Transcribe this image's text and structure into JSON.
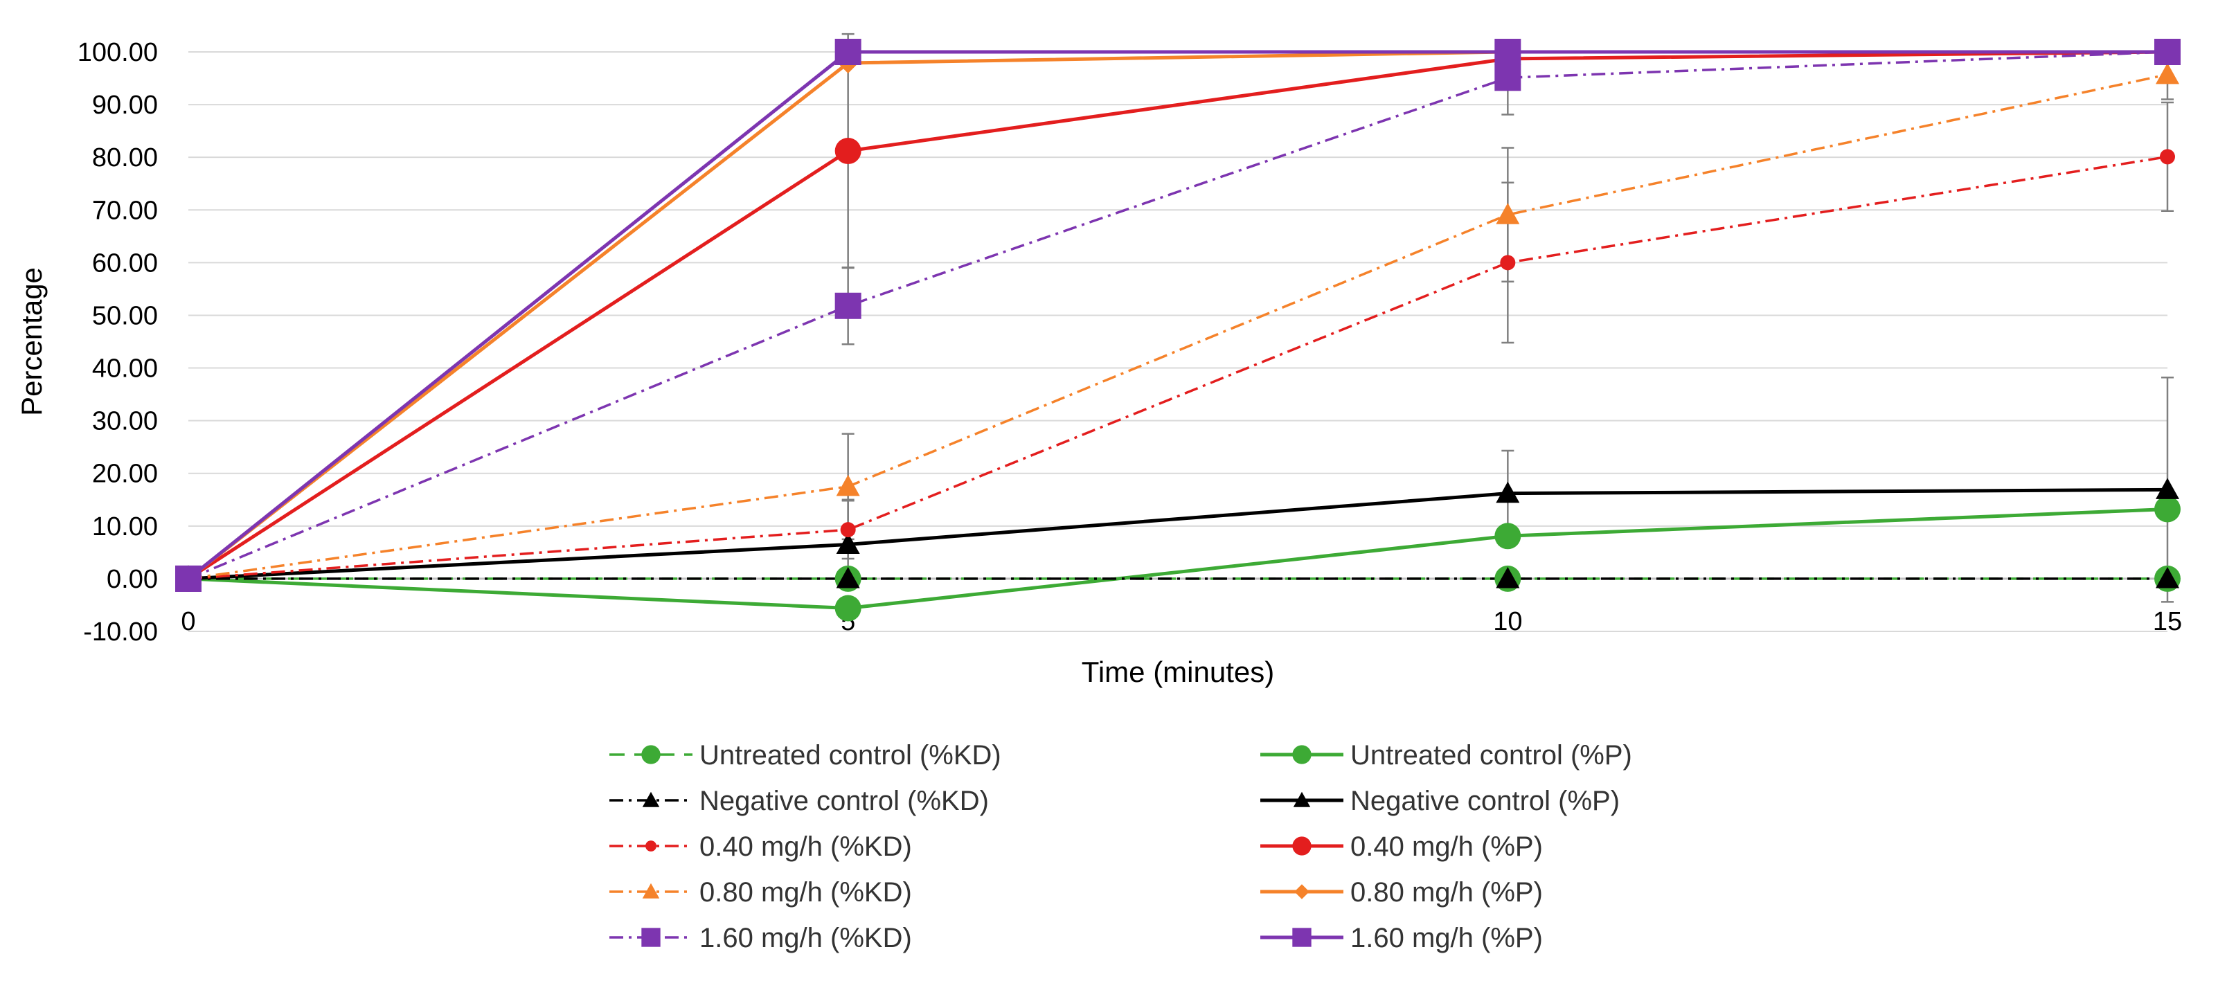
{
  "chart_data": {
    "type": "line",
    "title": "",
    "xlabel": "Time (minutes)",
    "ylabel": "Percentage",
    "x": [
      0,
      5,
      10,
      15
    ],
    "xlim": [
      0,
      15
    ],
    "ylim": [
      -10,
      100
    ],
    "y_ticks": [
      -10,
      0,
      10,
      20,
      30,
      40,
      50,
      60,
      70,
      80,
      90,
      100
    ],
    "y_tick_labels": [
      "-10.00",
      "0.00",
      "10.00",
      "20.00",
      "30.00",
      "40.00",
      "50.00",
      "60.00",
      "70.00",
      "80.00",
      "90.00",
      "100.00"
    ],
    "x_tick_labels": [
      "0",
      "5",
      "10",
      "15"
    ],
    "grid": "horizontal",
    "legend_position": "bottom",
    "series": [
      {
        "name": "Untreated control (%KD)",
        "color": "#3daa35",
        "dash": "dash",
        "marker": "circle",
        "values": [
          0,
          0,
          0,
          0
        ],
        "errors": [
          0,
          0,
          0,
          0
        ]
      },
      {
        "name": "Untreated control (%P)",
        "color": "#3daa35",
        "dash": "solid",
        "marker": "circle",
        "values": [
          0,
          -5.6,
          8.1,
          13.2
        ],
        "errors": [
          0,
          0,
          0,
          0
        ]
      },
      {
        "name": "Negative control (%KD)",
        "color": "#000000",
        "dash": "dashdot",
        "marker": "triangle",
        "values": [
          0,
          0,
          0,
          0
        ],
        "errors": [
          0,
          0,
          0,
          0
        ]
      },
      {
        "name": "Negative control (%P)",
        "color": "#000000",
        "dash": "solid",
        "marker": "triangle",
        "values": [
          0,
          6.5,
          16.2,
          16.9
        ],
        "errors": [
          0,
          8.5,
          8.1,
          21.3
        ]
      },
      {
        "name": "0.40 mg/h (%KD)",
        "color": "#e31e1e",
        "dash": "dashdot",
        "marker": "circle-small",
        "values": [
          0,
          9.3,
          60.0,
          80.1
        ],
        "errors": [
          0,
          5.5,
          15.2,
          10.3
        ]
      },
      {
        "name": "0.40 mg/h (%P)",
        "color": "#e31e1e",
        "dash": "solid",
        "marker": "circle",
        "values": [
          0,
          81.2,
          98.7,
          100
        ],
        "errors": [
          0,
          22.2,
          0,
          0
        ]
      },
      {
        "name": "0.80 mg/h (%KD)",
        "color": "#f5822a",
        "dash": "dashdot",
        "marker": "triangle",
        "values": [
          0,
          17.5,
          69.1,
          95.7
        ],
        "errors": [
          0,
          10.0,
          12.7,
          4.7
        ]
      },
      {
        "name": "0.80 mg/h (%P)",
        "color": "#f5822a",
        "dash": "solid",
        "marker": "diamond",
        "values": [
          0,
          97.9,
          100,
          100
        ],
        "errors": [
          0,
          0,
          0,
          0
        ]
      },
      {
        "name": "1.60 mg/h (%KD)",
        "color": "#7d35b0",
        "dash": "dashdot",
        "marker": "square",
        "values": [
          0,
          51.8,
          95.1,
          100
        ],
        "errors": [
          0,
          7.3,
          7.0,
          0
        ]
      },
      {
        "name": "1.60 mg/h (%P)",
        "color": "#7d35b0",
        "dash": "solid",
        "marker": "square",
        "values": [
          0,
          100,
          100,
          100
        ],
        "errors": [
          0,
          0,
          0,
          0
        ]
      }
    ]
  }
}
